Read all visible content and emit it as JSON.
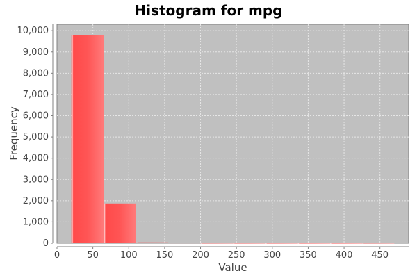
{
  "chart_data": {
    "type": "bar",
    "title": "Histogram for mpg",
    "xlabel": "Value",
    "ylabel": "Frequency",
    "xlim": [
      0,
      490
    ],
    "ylim": [
      0,
      10300
    ],
    "x_ticks": [
      0,
      50,
      100,
      150,
      200,
      250,
      300,
      350,
      400,
      450
    ],
    "y_ticks": [
      0,
      1000,
      2000,
      3000,
      4000,
      5000,
      6000,
      7000,
      8000,
      9000,
      10000
    ],
    "y_tick_labels": [
      "0",
      "1,000",
      "2,000",
      "3,000",
      "4,000",
      "5,000",
      "6,000",
      "7,000",
      "8,000",
      "9,000",
      "10,000"
    ],
    "bins": [
      {
        "x0": 20,
        "x1": 65,
        "value": 9780
      },
      {
        "x0": 65,
        "x1": 110,
        "value": 1870
      },
      {
        "x0": 110,
        "x1": 155,
        "value": 40
      },
      {
        "x0": 155,
        "x1": 200,
        "value": 15
      },
      {
        "x0": 200,
        "x1": 245,
        "value": 5
      },
      {
        "x0": 245,
        "x1": 290,
        "value": 3
      },
      {
        "x0": 290,
        "x1": 335,
        "value": 2
      },
      {
        "x0": 335,
        "x1": 380,
        "value": 1
      },
      {
        "x0": 380,
        "x1": 425,
        "value": 1
      },
      {
        "x0": 425,
        "x1": 470,
        "value": 5
      }
    ],
    "grid": true,
    "colors": {
      "bar": "#ff5a5a",
      "plot_background": "#c0c0c0",
      "grid": "#e6e6e6"
    }
  }
}
